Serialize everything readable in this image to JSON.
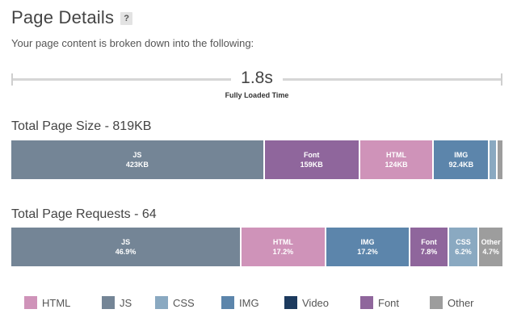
{
  "header": {
    "title": "Page Details",
    "help": "?",
    "subtitle": "Your page content is broken down into the following:"
  },
  "timing": {
    "value": "1.8s",
    "label": "Fully Loaded Time"
  },
  "page_size": {
    "title": "Total Page Size - 819KB",
    "segments": [
      {
        "label": "JS",
        "value": "423KB",
        "share": 51.6,
        "color": "#748596"
      },
      {
        "label": "Font",
        "value": "159KB",
        "share": 19.4,
        "color": "#8f669c"
      },
      {
        "label": "HTML",
        "value": "124KB",
        "share": 15.1,
        "color": "#cf93b9"
      },
      {
        "label": "IMG",
        "value": "92.4KB",
        "share": 11.3,
        "color": "#5c85ab"
      },
      {
        "label": "",
        "value": "",
        "share": 1.6,
        "color": "#8aa9c1"
      },
      {
        "label": "",
        "value": "",
        "share": 1.0,
        "color": "#9d9d9d"
      }
    ]
  },
  "page_requests": {
    "title": "Total Page Requests - 64",
    "segments": [
      {
        "label": "JS",
        "value": "46.9%",
        "share": 46.9,
        "color": "#748596"
      },
      {
        "label": "HTML",
        "value": "17.2%",
        "share": 17.2,
        "color": "#cf93b9"
      },
      {
        "label": "IMG",
        "value": "17.2%",
        "share": 17.2,
        "color": "#5c85ab"
      },
      {
        "label": "Font",
        "value": "7.8%",
        "share": 7.8,
        "color": "#8f669c"
      },
      {
        "label": "CSS",
        "value": "6.2%",
        "share": 6.2,
        "color": "#8aa9c1"
      },
      {
        "label": "Other",
        "value": "4.7%",
        "share": 4.7,
        "color": "#9d9d9d"
      }
    ]
  },
  "legend": [
    {
      "label": "HTML",
      "color": "#cf93b9"
    },
    {
      "label": "JS",
      "color": "#748596"
    },
    {
      "label": "CSS",
      "color": "#8aa9c1"
    },
    {
      "label": "IMG",
      "color": "#5c85ab"
    },
    {
      "label": "Video",
      "color": "#1c3a5e"
    },
    {
      "label": "Font",
      "color": "#8f669c"
    },
    {
      "label": "Other",
      "color": "#9d9d9d"
    }
  ]
}
